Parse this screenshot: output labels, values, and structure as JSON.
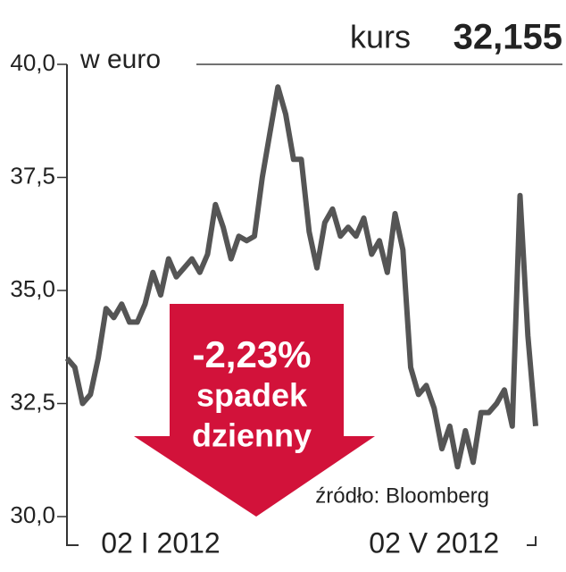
{
  "chart_data": {
    "type": "line",
    "title": "kurs",
    "title_value": "32,155",
    "y_label": "w euro",
    "source": "źródło: Bloomberg",
    "arrow_text": [
      "-2,23%",
      "spadek",
      "dzienny"
    ],
    "arrow_color": "#d2123a",
    "categories": [
      null,
      null,
      null,
      null,
      null,
      null,
      null,
      null,
      null,
      null,
      null,
      null,
      "02 I 2012",
      null,
      null,
      null,
      null,
      null,
      null,
      null,
      null,
      null,
      null,
      null,
      null,
      null,
      null,
      null,
      null,
      null,
      null,
      null,
      null,
      null,
      null,
      null,
      null,
      null,
      null,
      null,
      null,
      null,
      null,
      null,
      null,
      null,
      null,
      "02 V 2012",
      null,
      null,
      null,
      null,
      null,
      null,
      null,
      null,
      null,
      null,
      null,
      null,
      null
    ],
    "series": [
      {
        "name": "kurs",
        "color": "#555555",
        "values": [
          33.5,
          33.3,
          32.5,
          32.7,
          33.5,
          34.6,
          34.4,
          34.7,
          34.3,
          34.3,
          34.7,
          35.4,
          34.9,
          35.7,
          35.3,
          35.5,
          35.7,
          35.4,
          35.8,
          36.9,
          36.4,
          35.7,
          36.2,
          36.1,
          36.2,
          37.5,
          38.5,
          39.5,
          38.9,
          37.9,
          37.9,
          36.3,
          35.5,
          36.5,
          36.8,
          36.2,
          36.4,
          36.2,
          36.6,
          35.8,
          36.1,
          35.4,
          36.7,
          35.9,
          33.3,
          32.7,
          32.9,
          32.4,
          31.5,
          32.0,
          31.1,
          31.9,
          31.2,
          32.3,
          32.3,
          32.5,
          32.8,
          32.0,
          37.1,
          34.0,
          32.0
        ]
      }
    ],
    "ylim": [
      30,
      40
    ],
    "yticks": [
      {
        "value": 30,
        "label": "30,0"
      },
      {
        "value": 32.5,
        "label": "32,5"
      },
      {
        "value": 35,
        "label": "35,0"
      },
      {
        "value": 37.5,
        "label": "37,5"
      },
      {
        "value": 40,
        "label": "40,0"
      }
    ]
  }
}
